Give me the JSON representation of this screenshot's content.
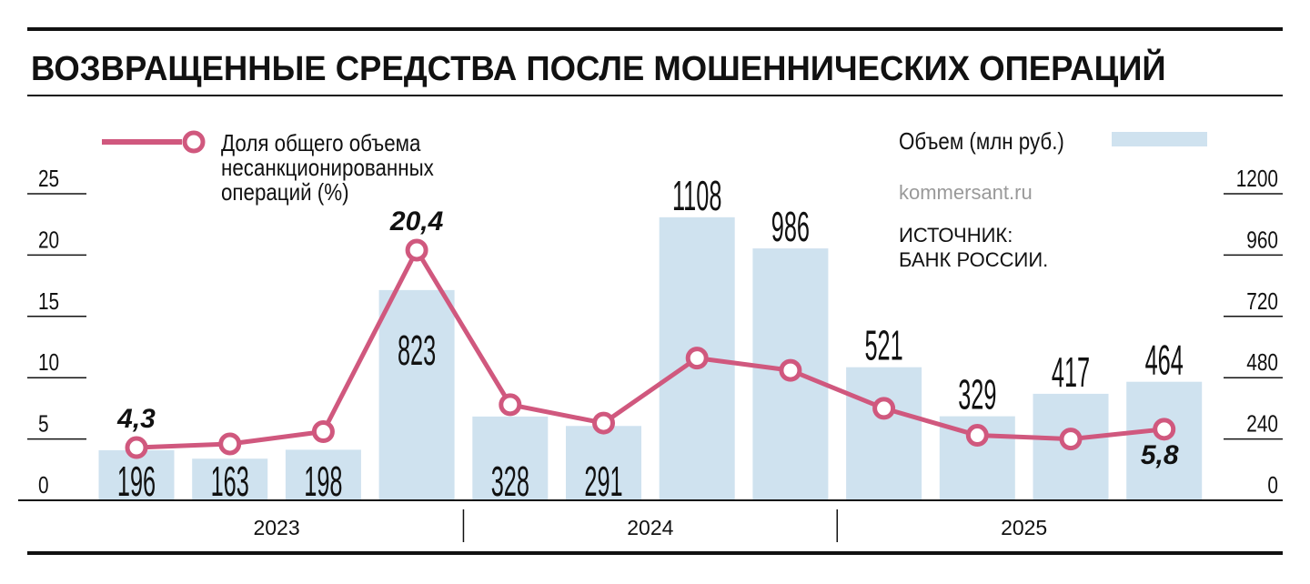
{
  "title": "ВОЗВРАЩЕННЫЕ СРЕДСТВА ПОСЛЕ МОШЕННИЧЕСКИХ ОПЕРАЦИЙ",
  "source_site": "kommersant.ru",
  "source_line1": "ИСТОЧНИК:",
  "source_line2": "БАНК РОССИИ.",
  "colors": {
    "bar": "#cfe2ef",
    "line": "#d0587e",
    "text": "#111111",
    "watermark": "#999999"
  },
  "chart_data": {
    "type": "bar+line",
    "title": "ВОЗВРАЩЕННЫЕ СРЕДСТВА ПОСЛЕ МОШЕННИЧЕСКИХ ОПЕРАЦИЙ",
    "years": [
      {
        "label": "2023",
        "quarters": 4
      },
      {
        "label": "2024",
        "quarters": 4
      },
      {
        "label": "2025",
        "quarters": 4
      }
    ],
    "bar_series": {
      "name": "Объем (млн руб.)",
      "axis": "right",
      "values": [
        196,
        163,
        198,
        823,
        328,
        291,
        1108,
        986,
        521,
        329,
        417,
        464
      ],
      "labels": [
        "196",
        "163",
        "198",
        "823",
        "328",
        "291",
        "1108",
        "986",
        "521",
        "329",
        "417",
        "464"
      ]
    },
    "line_series": {
      "name_lines": [
        "Доля общего объема",
        "несанкционированных",
        "операций (%)"
      ],
      "axis": "left",
      "values": [
        4.3,
        4.6,
        5.6,
        20.4,
        7.8,
        6.3,
        11.6,
        10.6,
        7.5,
        5.3,
        5.0,
        5.8
      ],
      "data_labels": [
        {
          "index": 0,
          "text": "4,3"
        },
        {
          "index": 3,
          "text": "20,4"
        },
        {
          "index": 11,
          "text": "5,8"
        }
      ]
    },
    "left_axis": {
      "range": [
        0,
        25
      ],
      "ticks": [
        "0",
        "5",
        "10",
        "15",
        "20",
        "25"
      ]
    },
    "right_axis": {
      "range": [
        0,
        1200
      ],
      "ticks": [
        "0",
        "240",
        "480",
        "720",
        "960",
        "1200"
      ]
    },
    "legend": {
      "line": "top-left",
      "bar": "top-right"
    },
    "grid": false
  }
}
